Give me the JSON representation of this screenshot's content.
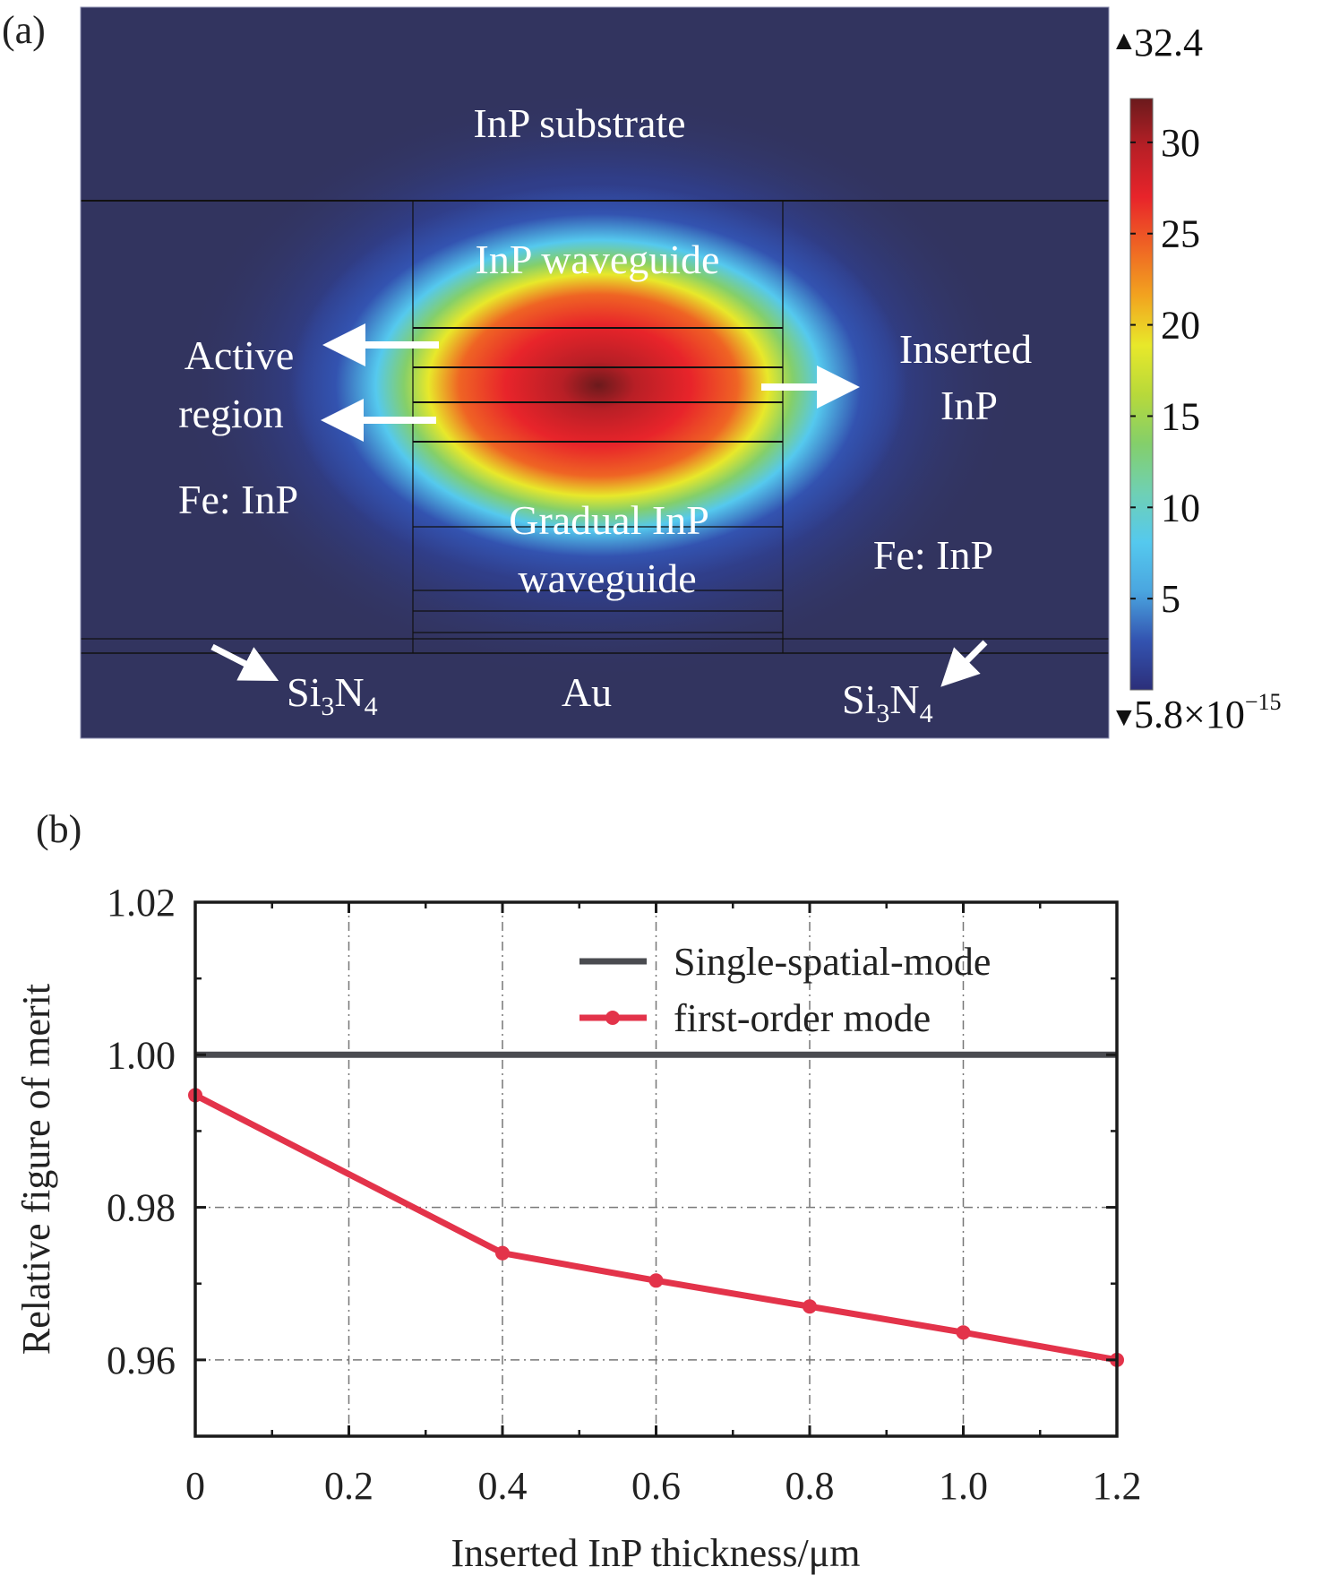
{
  "chart_data": [
    {
      "type": "heatmap",
      "panel_label": "(a)",
      "description": "Simulated optical mode field intensity distribution in waveguide cross-section",
      "colorbar": {
        "max_label": "32.4",
        "min_label": "5.8×10",
        "min_exponent": "−15",
        "max_marker": "▲",
        "min_marker": "▼",
        "range": [
          5.8e-15,
          32.4
        ],
        "ticks": [
          5,
          10,
          15,
          20,
          25,
          30
        ],
        "tick_labels": [
          "5",
          "10",
          "15",
          "20",
          "25",
          "30"
        ],
        "colormap": [
          "#2c2f7a",
          "#3353b0",
          "#4aa6e0",
          "#55c9ee",
          "#6fd0b4",
          "#84cf6a",
          "#b8d93a",
          "#e8e82a",
          "#f2a31f",
          "#ef6424",
          "#e8242a",
          "#b81f26",
          "#6b1a1c"
        ]
      },
      "regions": {
        "substrate": "InP substrate",
        "waveguide": "InP waveguide",
        "active_line1": "Active",
        "active_line2": "region",
        "inserted_line1": "Inserted",
        "inserted_line2": "InP",
        "fe_left": "Fe: InP",
        "fe_right": "Fe: InP",
        "gradual_line1": "Gradual InP",
        "gradual_line2": "waveguide",
        "si3n4_left_main": "Si",
        "si3n4_left_sub1": "3",
        "si3n4_left_n": "N",
        "si3n4_left_sub2": "4",
        "si3n4_right_main": "Si",
        "si3n4_right_sub1": "3",
        "si3n4_right_n": "N",
        "si3n4_right_sub2": "4",
        "gold": "Au"
      },
      "colors": {
        "background": "#32345f",
        "field_peak": "#8a1a1c",
        "label_text": "#ffffff"
      }
    },
    {
      "type": "line",
      "panel_label": "(b)",
      "title": "",
      "xlabel": "Inserted InP thickness/μm",
      "ylabel": "Relative figure of merit",
      "xlim": [
        0,
        1.2
      ],
      "ylim": [
        0.95,
        1.02
      ],
      "xticks": [
        0,
        0.2,
        0.4,
        0.6,
        0.8,
        1.0,
        1.2
      ],
      "xtick_labels": [
        "0",
        "0.2",
        "0.4",
        "0.6",
        "0.8",
        "1.0",
        "1.2"
      ],
      "yticks": [
        0.96,
        0.98,
        1.0,
        1.02
      ],
      "ytick_labels": [
        "0.96",
        "0.98",
        "1.00",
        "1.02"
      ],
      "grid": true,
      "legend_position": "top-right",
      "series": [
        {
          "name": "Single-spatial-mode",
          "color": "#4a4b50",
          "markers": false,
          "x": [
            0,
            1.2
          ],
          "y": [
            1.0,
            1.0
          ]
        },
        {
          "name": "first-order mode",
          "color": "#e3334a",
          "markers": true,
          "x": [
            0,
            0.4,
            0.6,
            0.8,
            1.0,
            1.2
          ],
          "y": [
            0.9947,
            0.974,
            0.9704,
            0.967,
            0.9636,
            0.96
          ]
        }
      ]
    }
  ]
}
